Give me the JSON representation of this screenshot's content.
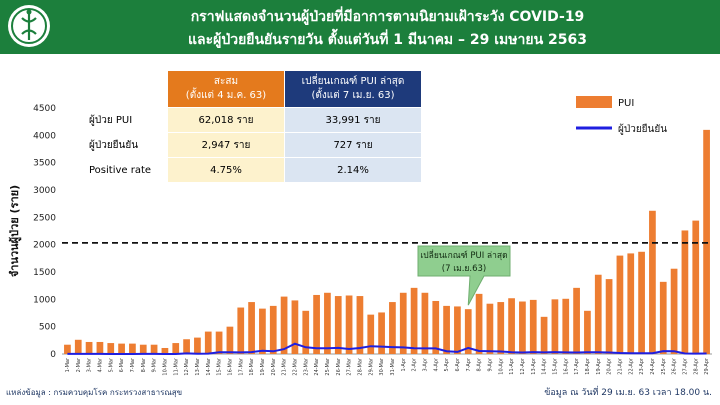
{
  "header": {
    "title_line1": "กราฟแสดงจำนวนผู้ป่วยที่มีอาการตามนิยามเฝ้าระวัง COVID-19",
    "title_line2": "และผู้ป่วยยืนยันรายวัน ตั้งแต่วันที่ 1 มีนาคม – 29 เมษายน 2563",
    "logo_icon": "moph-logo-icon"
  },
  "stats_table": {
    "col1_header_line1": "สะสม",
    "col1_header_line2": "(ตั้งแต่ 4 ม.ค. 63)",
    "col2_header_line1": "เปลี่ยนเกณฑ์ PUI ล่าสุด",
    "col2_header_line2": "(ตั้งแต่ 7 เม.ย. 63)",
    "rows": [
      {
        "label": "ผู้ป่วย PUI",
        "col1": "62,018 ราย",
        "col2": "33,991 ราย"
      },
      {
        "label": "ผู้ป่วยยืนยัน",
        "col1": "2,947  ราย",
        "col2": "727 ราย"
      },
      {
        "label": "Positive rate",
        "col1": "4.75%",
        "col2": "2.14%"
      }
    ]
  },
  "colors": {
    "header_bg": "#1c7f3c",
    "pui_bar": "#ed7d31",
    "confirmed_line": "#1f1fe0",
    "table_head_left": "#e47a1d",
    "table_head_right": "#1e3a7b",
    "callout": "#8fce8f"
  },
  "chart_data": {
    "type": "bar",
    "ylabel": "จำนวนผู้ป่วย (ราย)",
    "ylim": [
      0,
      4500
    ],
    "yticks": [
      0,
      500,
      1000,
      1500,
      2000,
      2500,
      3000,
      3500,
      4000,
      4500
    ],
    "reference_line": 2033,
    "legend_position": "top-right",
    "categories": [
      "1-Mar",
      "2-Mar",
      "3-Mar",
      "4-Mar",
      "5-Mar",
      "6-Mar",
      "7-Mar",
      "8-Mar",
      "9-Mar",
      "10-Mar",
      "11-Mar",
      "12-Mar",
      "13-Mar",
      "14-Mar",
      "15-Mar",
      "16-Mar",
      "17-Mar",
      "18-Mar",
      "19-Mar",
      "20-Mar",
      "21-Mar",
      "22-Mar",
      "23-Mar",
      "24-Mar",
      "25-Mar",
      "26-Mar",
      "27-Mar",
      "28-Mar",
      "29-Mar",
      "30-Mar",
      "31-Mar",
      "1-Apr",
      "2-Apr",
      "3-Apr",
      "4-Apr",
      "5-Apr",
      "6-Apr",
      "7-Apr",
      "8-Apr",
      "9-Apr",
      "10-Apr",
      "11-Apr",
      "12-Apr",
      "13-Apr",
      "14-Apr",
      "15-Apr",
      "16-Apr",
      "17-Apr",
      "18-Apr",
      "19-Apr",
      "20-Apr",
      "21-Apr",
      "22-Apr",
      "23-Apr",
      "24-Apr",
      "25-Apr",
      "26-Apr",
      "27-Apr",
      "28-Apr",
      "29-Apr"
    ],
    "series": [
      {
        "name": "PUI",
        "type": "bar",
        "values": [
          170,
          260,
          220,
          220,
          200,
          190,
          190,
          170,
          170,
          110,
          200,
          270,
          300,
          410,
          410,
          500,
          850,
          950,
          830,
          880,
          1050,
          980,
          790,
          1080,
          1120,
          1060,
          1070,
          1060,
          720,
          760,
          950,
          1120,
          1210,
          1120,
          970,
          880,
          870,
          820,
          1100,
          920,
          950,
          1020,
          960,
          990,
          680,
          1000,
          1010,
          1210,
          790,
          1450,
          1370,
          1800,
          1840,
          1870,
          2620,
          1320,
          1560,
          2260,
          2440,
          4100
        ]
      },
      {
        "name": "ผู้ป่วยยืนยัน",
        "type": "line",
        "values": [
          1,
          1,
          1,
          2,
          0,
          0,
          0,
          1,
          1,
          0,
          0,
          11,
          5,
          7,
          32,
          33,
          30,
          35,
          60,
          50,
          89,
          188,
          122,
          106,
          107,
          111,
          91,
          109,
          143,
          136,
          127,
          120,
          104,
          103,
          102,
          51,
          38,
          111,
          54,
          50,
          45,
          33,
          28,
          34,
          30,
          34,
          29,
          28,
          33,
          32,
          27,
          19,
          15,
          13,
          15,
          53,
          51,
          9,
          7,
          9
        ]
      }
    ],
    "annotation": {
      "line1": "เปลี่ยนเกณฑ์ PUI ล่าสุด",
      "line2": "(7 เม.ย.63)",
      "category": "7-Apr"
    }
  },
  "footer": {
    "source": "แหล่งข้อมูล : กรมควบคุมโรค กระทรวงสาธารณสุข",
    "timestamp": "ข้อมูล ณ วันที่  29 เม.ย. 63 เวลา 18.00 น."
  }
}
